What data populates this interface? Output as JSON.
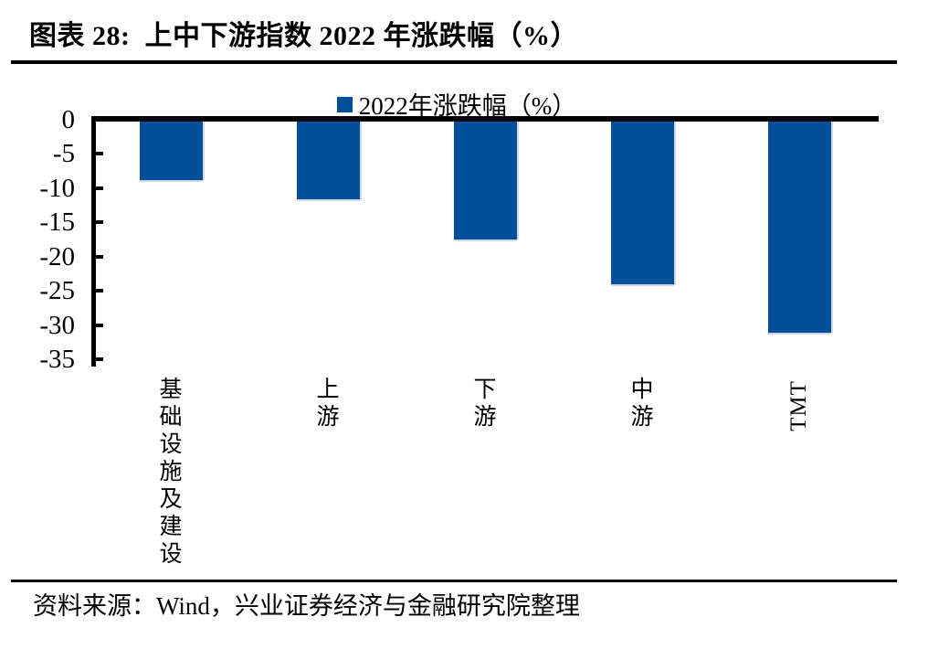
{
  "header": {
    "title": "图表 28:  上中下游指数 2022 年涨跌幅（%）"
  },
  "chart_data": {
    "type": "bar",
    "title": "上中下游指数 2022 年涨跌幅（%）",
    "legend_label": "2022年涨跌幅（%）",
    "legend_position": "top-center",
    "categories": [
      "基础设施及建设",
      "上游",
      "下游",
      "中游",
      "TMT"
    ],
    "values": [
      -8.9,
      -11.7,
      -17.5,
      -24.1,
      -31.1
    ],
    "ylim": [
      -35,
      0
    ],
    "yticks": [
      0,
      -5,
      -10,
      -15,
      -20,
      -25,
      -30,
      -35
    ],
    "ytick_interval": 5,
    "xlabel": "",
    "ylabel": "",
    "grid": false,
    "bar_color": "#014F9B",
    "axis_color": "#000000"
  },
  "footer": {
    "source": "资料来源：Wind，兴业证券经济与金融研究院整理"
  }
}
